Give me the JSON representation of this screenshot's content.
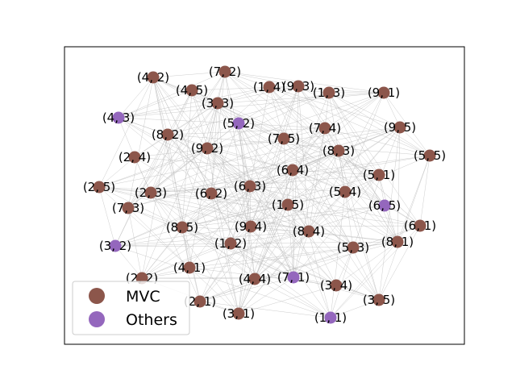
{
  "chart_data": {
    "type": "network",
    "title": "",
    "legend": {
      "placement": "lower-left",
      "entries": [
        {
          "label": "MVC",
          "color": "#8c564b"
        },
        {
          "label": "Others",
          "color": "#9467bd"
        }
      ]
    },
    "colors": {
      "MVC": "#8c564b",
      "Others": "#9467bd",
      "edge": "#bbbbbb"
    },
    "nodes": [
      {
        "id": "(7, 2)",
        "group": "MVC"
      },
      {
        "id": "(4, 2)",
        "group": "MVC"
      },
      {
        "id": "(4, 5)",
        "group": "MVC"
      },
      {
        "id": "(1, 4)",
        "group": "MVC"
      },
      {
        "id": "(9, 3)",
        "group": "MVC"
      },
      {
        "id": "(1, 3)",
        "group": "MVC"
      },
      {
        "id": "(9, 1)",
        "group": "MVC"
      },
      {
        "id": "(3, 3)",
        "group": "MVC"
      },
      {
        "id": "(4, 3)",
        "group": "Others"
      },
      {
        "id": "(5, 2)",
        "group": "Others"
      },
      {
        "id": "(7, 4)",
        "group": "MVC"
      },
      {
        "id": "(9, 5)",
        "group": "MVC"
      },
      {
        "id": "(8, 2)",
        "group": "MVC"
      },
      {
        "id": "(7, 5)",
        "group": "MVC"
      },
      {
        "id": "(9, 2)",
        "group": "MVC"
      },
      {
        "id": "(8, 3)",
        "group": "MVC"
      },
      {
        "id": "(2, 4)",
        "group": "MVC"
      },
      {
        "id": "(5, 5)",
        "group": "MVC"
      },
      {
        "id": "(6, 4)",
        "group": "MVC"
      },
      {
        "id": "(5, 1)",
        "group": "MVC"
      },
      {
        "id": "(2, 5)",
        "group": "MVC"
      },
      {
        "id": "(6, 3)",
        "group": "MVC"
      },
      {
        "id": "(2, 3)",
        "group": "MVC"
      },
      {
        "id": "(6, 2)",
        "group": "MVC"
      },
      {
        "id": "(5, 4)",
        "group": "MVC"
      },
      {
        "id": "(1, 5)",
        "group": "MVC"
      },
      {
        "id": "(6, 5)",
        "group": "Others"
      },
      {
        "id": "(7, 3)",
        "group": "MVC"
      },
      {
        "id": "(6, 1)",
        "group": "MVC"
      },
      {
        "id": "(8, 5)",
        "group": "MVC"
      },
      {
        "id": "(9, 4)",
        "group": "MVC"
      },
      {
        "id": "(8, 4)",
        "group": "MVC"
      },
      {
        "id": "(1, 2)",
        "group": "MVC"
      },
      {
        "id": "(8, 1)",
        "group": "MVC"
      },
      {
        "id": "(3, 2)",
        "group": "Others"
      },
      {
        "id": "(5, 3)",
        "group": "MVC"
      },
      {
        "id": "(4, 1)",
        "group": "MVC"
      },
      {
        "id": "(2, 2)",
        "group": "MVC"
      },
      {
        "id": "(4, 4)",
        "group": "MVC"
      },
      {
        "id": "(7, 1)",
        "group": "Others"
      },
      {
        "id": "(3, 4)",
        "group": "MVC"
      },
      {
        "id": "(3, 5)",
        "group": "MVC"
      },
      {
        "id": "(2, 1)",
        "group": "MVC"
      },
      {
        "id": "(3, 1)",
        "group": "MVC"
      },
      {
        "id": "(1, 1)",
        "group": "Others"
      }
    ]
  }
}
